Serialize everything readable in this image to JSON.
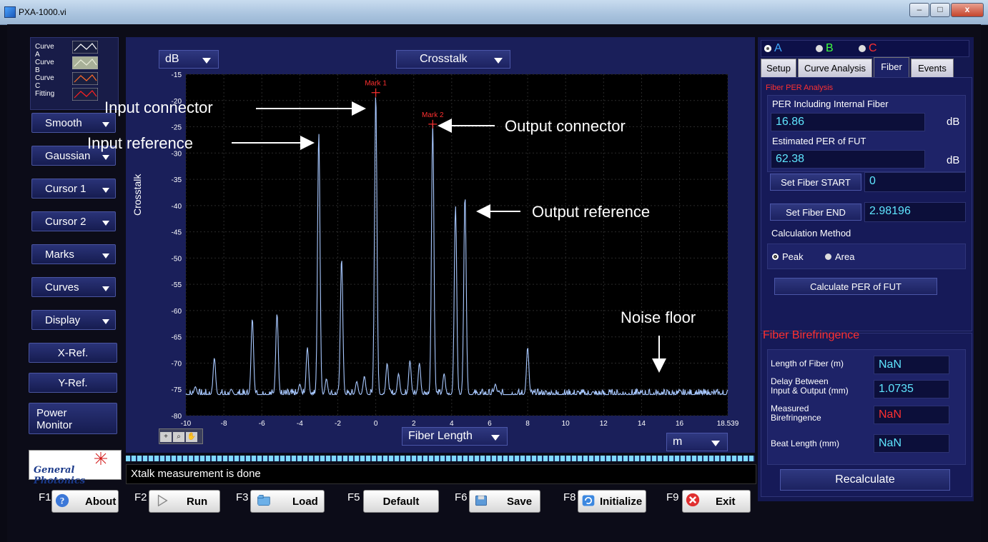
{
  "window": {
    "title": "PXA-1000.vi",
    "min_label": "–",
    "max_label": "□",
    "close_label": "x"
  },
  "legend": [
    {
      "label": "Curve A",
      "color": "#ffffff"
    },
    {
      "label": "Curve B",
      "color": "#c8d0b8"
    },
    {
      "label": "Curve C",
      "color": "#ff6a2a"
    },
    {
      "label": "Fitting",
      "color": "#ff2020"
    }
  ],
  "left_buttons": [
    {
      "label": "Smooth",
      "dropdown": true
    },
    {
      "label": "Gaussian",
      "dropdown": true
    },
    {
      "label": "Cursor 1",
      "dropdown": true
    },
    {
      "label": "Cursor 2",
      "dropdown": true
    },
    {
      "label": "Marks",
      "dropdown": true
    },
    {
      "label": "Curves",
      "dropdown": true
    },
    {
      "label": "Display",
      "dropdown": true
    },
    {
      "label": "X-Ref.",
      "dropdown": false
    },
    {
      "label": "Y-Ref.",
      "dropdown": false
    }
  ],
  "power_monitor": {
    "line1": "Power",
    "line2": "Monitor"
  },
  "logo": {
    "text": "General Photonics"
  },
  "graph": {
    "y_unit_dropdown": "dB",
    "mode_dropdown": "Crosstalk",
    "x_dropdown": "Fiber Length",
    "x_unit_dropdown": "m",
    "y_title": "Crosstalk",
    "marks": [
      {
        "label": "Mark 1",
        "x": 0,
        "y": -18.5
      },
      {
        "label": "Mark 2",
        "x": 3,
        "y": -24.5
      }
    ],
    "tools_icons": [
      "crosshair-icon",
      "zoom-icon",
      "hand-icon"
    ]
  },
  "annotations": {
    "input_connector": "Input connector",
    "input_reference": "Input reference",
    "output_connector": "Output connector",
    "output_reference": "Output reference",
    "noise_floor": "Noise floor"
  },
  "chart_data": {
    "type": "line",
    "title": "",
    "xlabel": "Fiber Length",
    "ylabel": "Crosstalk",
    "xlim": [
      -10,
      18.539
    ],
    "ylim": [
      -80,
      -15
    ],
    "x_ticks": [
      -10,
      -8,
      -6,
      -4,
      -2,
      0,
      2,
      4,
      6,
      8,
      10,
      12,
      14,
      16,
      18.539
    ],
    "y_ticks": [
      -15,
      -20,
      -25,
      -30,
      -35,
      -40,
      -45,
      -50,
      -55,
      -60,
      -65,
      -70,
      -75,
      -80
    ],
    "grid": true,
    "noise_floor": -76,
    "peaks": [
      {
        "x": -9.5,
        "y": -74.5
      },
      {
        "x": -8.5,
        "y": -69
      },
      {
        "x": -6.5,
        "y": -61.5
      },
      {
        "x": -5.2,
        "y": -60.5
      },
      {
        "x": -4.0,
        "y": -74
      },
      {
        "x": -3.6,
        "y": -67
      },
      {
        "x": -3.0,
        "y": -26
      },
      {
        "x": -2.6,
        "y": -73
      },
      {
        "x": -1.8,
        "y": -50
      },
      {
        "x": -1.0,
        "y": -73.5
      },
      {
        "x": -0.6,
        "y": -72.5
      },
      {
        "x": 0.0,
        "y": -18.5
      },
      {
        "x": 0.6,
        "y": -70
      },
      {
        "x": 1.2,
        "y": -72
      },
      {
        "x": 1.8,
        "y": -69.5
      },
      {
        "x": 2.3,
        "y": -70
      },
      {
        "x": 3.0,
        "y": -24.5
      },
      {
        "x": 3.6,
        "y": -72
      },
      {
        "x": 4.2,
        "y": -40
      },
      {
        "x": 4.7,
        "y": -38
      },
      {
        "x": 6.3,
        "y": -74
      },
      {
        "x": 8.0,
        "y": -67
      },
      {
        "x": 16.0,
        "y": -75.5
      }
    ]
  },
  "status": {
    "message": "Xtalk measurement is done"
  },
  "fkeys": [
    {
      "key": "F1",
      "label": "About",
      "icon": "info-icon"
    },
    {
      "key": "F2",
      "label": "Run",
      "icon": "play-icon"
    },
    {
      "key": "F3",
      "label": "Load",
      "icon": "folder-icon"
    },
    {
      "key": "F5",
      "label": "Default",
      "icon": ""
    },
    {
      "key": "F6",
      "label": "Save",
      "icon": "save-icon"
    },
    {
      "key": "F8",
      "label": "Initialize",
      "icon": "refresh-icon"
    },
    {
      "key": "F9",
      "label": "Exit",
      "icon": "close-icon"
    }
  ],
  "right_panel": {
    "radios": [
      {
        "label": "A",
        "color": "#3fa8ff",
        "selected": true
      },
      {
        "label": "B",
        "color": "#3fff3f",
        "selected": false
      },
      {
        "label": "C",
        "color": "#ff3030",
        "selected": false
      }
    ],
    "tabs": [
      {
        "label": "Setup",
        "active": false
      },
      {
        "label": "Curve Analysis",
        "active": false
      },
      {
        "label": "Fiber",
        "active": true
      },
      {
        "label": "Events",
        "active": false
      }
    ],
    "fiber_per": {
      "title": "Fiber PER Analysis",
      "per_incl_label": "PER Including  Internal Fiber",
      "per_incl_value": "16.86",
      "per_incl_unit": "dB",
      "est_per_label": "Estimated PER of FUT",
      "est_per_value": "62.38",
      "est_per_unit": "dB",
      "set_start_label": "Set Fiber START",
      "start_value": "0",
      "set_end_label": "Set Fiber END",
      "end_value": "2.98196",
      "calc_method_label": "Calculation Method",
      "method_peak": "Peak",
      "method_area": "Area",
      "calc_button": "Calculate  PER of FUT"
    },
    "birefringence": {
      "title": "Fiber Birefringence",
      "length_label": "Length of Fiber (m)",
      "length_value": "NaN",
      "delay_label_1": "Delay  Between",
      "delay_label_2": "Input & Output (mm)",
      "delay_value": "1.0735",
      "measured_label_1": "Measured",
      "measured_label_2": "Birefringence",
      "measured_value": "NaN",
      "beat_label": "Beat Length (mm)",
      "beat_value": "NaN",
      "recalc_button": "Recalculate"
    }
  }
}
